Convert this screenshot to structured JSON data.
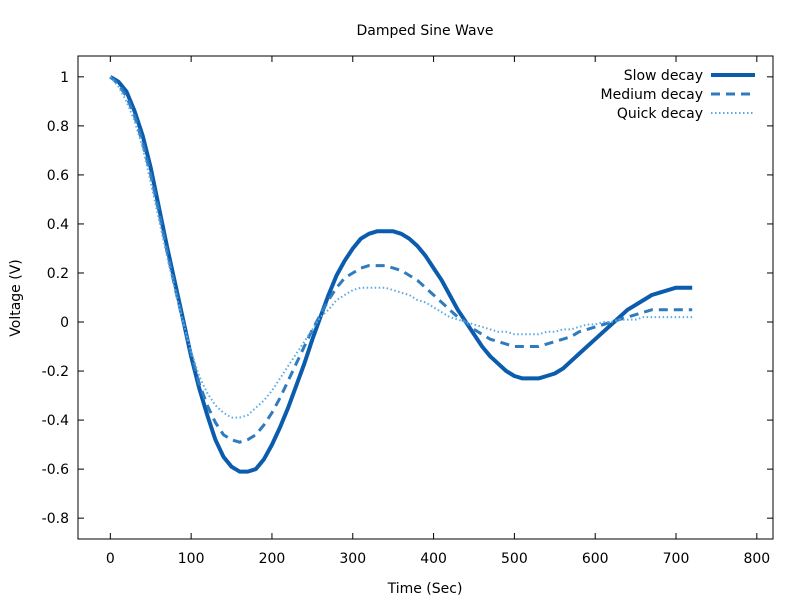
{
  "chart_data": {
    "type": "line",
    "title": "Damped Sine Wave",
    "xlabel": "Time (Sec)",
    "ylabel": "Voltage (V)",
    "xlim": [
      -40,
      820
    ],
    "ylim": [
      -0.885,
      1.085
    ],
    "xticks": [
      0,
      100,
      200,
      300,
      400,
      500,
      600,
      700,
      800
    ],
    "xtick_labels": [
      "0",
      "100",
      "200",
      "300",
      "400",
      "500",
      "600",
      "700",
      "800"
    ],
    "yticks": [
      -0.8,
      -0.6,
      -0.4,
      -0.2,
      0,
      0.2,
      0.4,
      0.6,
      0.8,
      1
    ],
    "ytick_labels": [
      "-0.8",
      "-0.6",
      "-0.4",
      "-0.2",
      "0",
      "0.2",
      "0.4",
      "0.6",
      "0.8",
      "1"
    ],
    "grid": false,
    "legend_position": "top-right",
    "x": [
      0,
      10,
      20,
      30,
      40,
      50,
      60,
      70,
      80,
      90,
      100,
      110,
      120,
      130,
      140,
      150,
      160,
      170,
      180,
      190,
      200,
      210,
      220,
      230,
      240,
      250,
      260,
      270,
      280,
      290,
      300,
      310,
      320,
      330,
      340,
      350,
      360,
      370,
      380,
      390,
      400,
      410,
      420,
      430,
      440,
      450,
      460,
      470,
      480,
      490,
      500,
      510,
      520,
      530,
      540,
      550,
      560,
      570,
      580,
      590,
      600,
      610,
      620,
      630,
      640,
      650,
      660,
      670,
      680,
      690,
      700,
      710,
      720
    ],
    "series": [
      {
        "name": "Slow decay",
        "color": "#0b5cad",
        "style": "solid",
        "values": [
          1.0,
          0.98,
          0.94,
          0.86,
          0.76,
          0.63,
          0.47,
          0.31,
          0.16,
          0.01,
          -0.14,
          -0.27,
          -0.38,
          -0.48,
          -0.55,
          -0.59,
          -0.61,
          -0.61,
          -0.6,
          -0.56,
          -0.5,
          -0.43,
          -0.35,
          -0.26,
          -0.17,
          -0.07,
          0.02,
          0.11,
          0.19,
          0.25,
          0.3,
          0.34,
          0.36,
          0.37,
          0.37,
          0.37,
          0.36,
          0.34,
          0.31,
          0.27,
          0.22,
          0.17,
          0.11,
          0.05,
          0.0,
          -0.05,
          -0.1,
          -0.14,
          -0.17,
          -0.2,
          -0.22,
          -0.23,
          -0.23,
          -0.23,
          -0.22,
          -0.21,
          -0.19,
          -0.16,
          -0.13,
          -0.1,
          -0.07,
          -0.04,
          -0.01,
          0.02,
          0.05,
          0.07,
          0.09,
          0.11,
          0.12,
          0.13,
          0.14,
          0.14,
          0.14
        ]
      },
      {
        "name": "Medium decay",
        "color": "#2f7bbf",
        "style": "dashed",
        "values": [
          1.0,
          0.97,
          0.92,
          0.84,
          0.73,
          0.6,
          0.45,
          0.29,
          0.14,
          0.0,
          -0.13,
          -0.25,
          -0.34,
          -0.41,
          -0.46,
          -0.48,
          -0.49,
          -0.48,
          -0.46,
          -0.42,
          -0.37,
          -0.31,
          -0.24,
          -0.17,
          -0.1,
          -0.03,
          0.03,
          0.09,
          0.14,
          0.18,
          0.2,
          0.22,
          0.23,
          0.23,
          0.23,
          0.22,
          0.21,
          0.19,
          0.17,
          0.14,
          0.11,
          0.08,
          0.05,
          0.02,
          0.0,
          -0.03,
          -0.05,
          -0.07,
          -0.08,
          -0.09,
          -0.1,
          -0.1,
          -0.1,
          -0.1,
          -0.09,
          -0.08,
          -0.07,
          -0.06,
          -0.04,
          -0.03,
          -0.02,
          -0.01,
          0.0,
          0.01,
          0.02,
          0.03,
          0.04,
          0.05,
          0.05,
          0.05,
          0.05,
          0.05,
          0.05
        ]
      },
      {
        "name": "Quick decay",
        "color": "#5aaae6",
        "style": "dotted",
        "values": [
          1.0,
          0.96,
          0.9,
          0.82,
          0.71,
          0.57,
          0.42,
          0.27,
          0.13,
          0.0,
          -0.12,
          -0.22,
          -0.29,
          -0.34,
          -0.37,
          -0.39,
          -0.39,
          -0.38,
          -0.35,
          -0.32,
          -0.28,
          -0.23,
          -0.18,
          -0.13,
          -0.08,
          -0.03,
          0.02,
          0.05,
          0.09,
          0.11,
          0.13,
          0.14,
          0.14,
          0.14,
          0.14,
          0.13,
          0.12,
          0.11,
          0.09,
          0.08,
          0.06,
          0.04,
          0.02,
          0.01,
          0.0,
          -0.01,
          -0.02,
          -0.03,
          -0.04,
          -0.04,
          -0.05,
          -0.05,
          -0.05,
          -0.05,
          -0.04,
          -0.04,
          -0.03,
          -0.03,
          -0.02,
          -0.01,
          -0.01,
          0.0,
          0.0,
          0.01,
          0.01,
          0.01,
          0.02,
          0.02,
          0.02,
          0.02,
          0.02,
          0.02,
          0.02
        ]
      }
    ]
  }
}
